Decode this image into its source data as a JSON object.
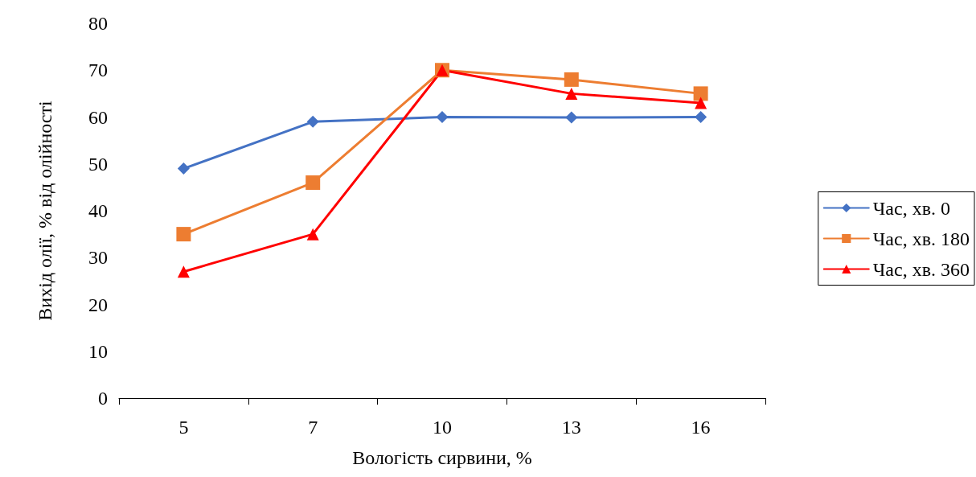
{
  "chart_data": {
    "type": "line",
    "xlabel": "Вологість сирвини, %",
    "ylabel": "Вихід олії, % від олійності",
    "categories": [
      "5",
      "7",
      "10",
      "13",
      "16"
    ],
    "series": [
      {
        "name": "Час, хв. 0",
        "color": "#4472c4",
        "marker": "diamond",
        "values": [
          49,
          59,
          60,
          59.9,
          60
        ]
      },
      {
        "name": "Час, хв. 180",
        "color": "#ed7d31",
        "marker": "square",
        "values": [
          35,
          46,
          70,
          68,
          65
        ]
      },
      {
        "name": "Час, хв. 360",
        "color": "#ff0000",
        "marker": "triangle",
        "values": [
          27,
          35,
          70,
          65,
          63
        ]
      }
    ],
    "ylim": [
      0,
      80
    ],
    "yticks": [
      0,
      10,
      20,
      30,
      40,
      50,
      60,
      70,
      80
    ],
    "grid": false,
    "legend": "right",
    "line_style": "solid"
  }
}
